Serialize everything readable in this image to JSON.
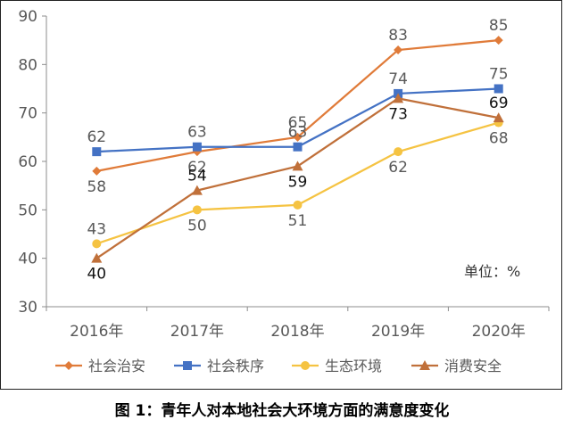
{
  "caption": "图 1：青年人对本地社会大环境方面的满意度变化",
  "chart_data": {
    "type": "line",
    "categories": [
      "2016年",
      "2017年",
      "2018年",
      "2019年",
      "2020年"
    ],
    "ylim": [
      30,
      90
    ],
    "yticks": [
      30,
      40,
      50,
      60,
      70,
      80,
      90
    ],
    "grid": false,
    "legend_position": "bottom",
    "unit_label": "单位：%",
    "series": [
      {
        "name": "社会治安",
        "values": [
          58,
          62,
          65,
          83,
          85
        ],
        "color": "#E07B39",
        "marker": "diamond",
        "labelColor": "#595959",
        "labelPos": [
          "below",
          "below",
          "above",
          "above",
          "above"
        ]
      },
      {
        "name": "社会秩序",
        "values": [
          62,
          63,
          63,
          74,
          75
        ],
        "color": "#4472C4",
        "marker": "square",
        "labelColor": "#595959",
        "labelPos": [
          "above",
          "above",
          "above",
          "above",
          "above"
        ]
      },
      {
        "name": "生态环境",
        "values": [
          43,
          50,
          51,
          62,
          68
        ],
        "color": "#F5C342",
        "marker": "circle",
        "labelColor": "#595959",
        "labelPos": [
          "above",
          "below",
          "below",
          "below",
          "below"
        ]
      },
      {
        "name": "消费安全",
        "values": [
          40,
          54,
          59,
          73,
          69
        ],
        "color": "#C0703A",
        "marker": "triangle",
        "labelColor": "#111111",
        "labelPos": [
          "below",
          "above",
          "below",
          "below",
          "above"
        ]
      }
    ]
  }
}
